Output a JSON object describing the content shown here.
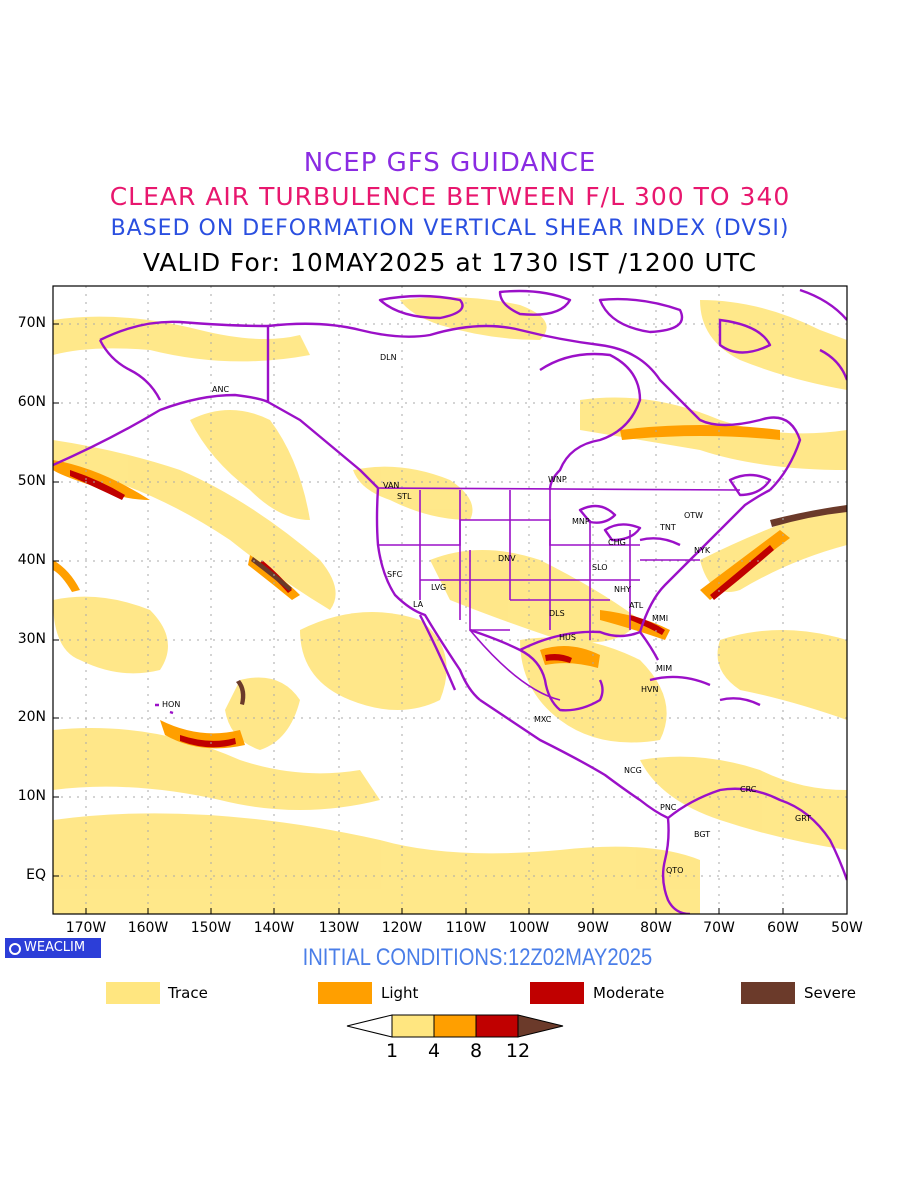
{
  "header": {
    "line1": "NCEP GFS GUIDANCE",
    "line2": "CLEAR AIR TURBULENCE BETWEEN F/L 300 TO 340",
    "line3": "BASED ON DEFORMATION VERTICAL SHEAR INDEX (DVSI)",
    "line4": "VALID For: 10MAY2025 at 1730 IST /1200 UTC"
  },
  "map": {
    "lat_labels": [
      "70N",
      "60N",
      "50N",
      "40N",
      "30N",
      "20N",
      "10N",
      "EQ"
    ],
    "lon_labels": [
      "170W",
      "160W",
      "150W",
      "140W",
      "130W",
      "120W",
      "110W",
      "100W",
      "90W",
      "80W",
      "70W",
      "60W",
      "50W"
    ],
    "stations": [
      {
        "label": "DLN"
      },
      {
        "label": "ANC"
      },
      {
        "label": "VAN"
      },
      {
        "label": "STL"
      },
      {
        "label": "WNP"
      },
      {
        "label": "MNP"
      },
      {
        "label": "CHG"
      },
      {
        "label": "TNT"
      },
      {
        "label": "OTW"
      },
      {
        "label": "NYK"
      },
      {
        "label": "DNV"
      },
      {
        "label": "SFC"
      },
      {
        "label": "LVG"
      },
      {
        "label": "LA"
      },
      {
        "label": "SLO"
      },
      {
        "label": "NHY"
      },
      {
        "label": "ATL"
      },
      {
        "label": "DLS"
      },
      {
        "label": "MMI"
      },
      {
        "label": "HUS"
      },
      {
        "label": "MIM"
      },
      {
        "label": "HVN"
      },
      {
        "label": "HON"
      },
      {
        "label": "MXC"
      },
      {
        "label": "NCG"
      },
      {
        "label": "CRC"
      },
      {
        "label": "PNC"
      },
      {
        "label": "BGT"
      },
      {
        "label": "GRT"
      },
      {
        "label": "QTO"
      }
    ],
    "colors": {
      "trace": "#ffe680",
      "light": "#ff9f00",
      "moderate": "#c00000",
      "severe": "#6b3a2a",
      "boundaries": "#9b10c8"
    }
  },
  "brand": {
    "label": "WEACLIM"
  },
  "initial_conditions": "INITIAL CONDITIONS:12Z02MAY2025",
  "legend": [
    {
      "label": "Trace",
      "color": "#ffe680"
    },
    {
      "label": "Light",
      "color": "#ff9f00"
    },
    {
      "label": "Moderate",
      "color": "#c00000"
    },
    {
      "label": "Severe",
      "color": "#6b3a2a"
    }
  ],
  "colorbar": {
    "ticks": [
      "1",
      "4",
      "8",
      "12"
    ],
    "colors": [
      "#ffe680",
      "#ff9f00",
      "#c00000",
      "#6b3a2a"
    ]
  }
}
